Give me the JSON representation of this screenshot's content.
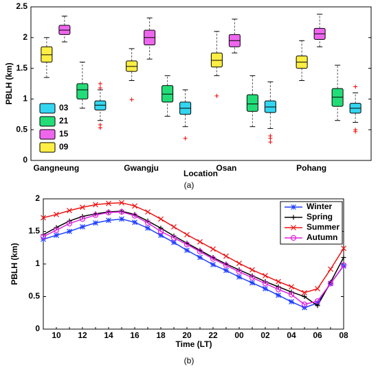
{
  "chart_data": [
    {
      "type": "box",
      "ylabel": "PBLH (km)",
      "xlabel": "Location",
      "caption": "(a)",
      "categories": [
        "Gangneung",
        "Gwangju",
        "Osan",
        "Pohang"
      ],
      "ylim": [
        0,
        2.5
      ],
      "yticks": [
        0,
        0.5,
        1,
        1.5,
        2,
        2.5
      ],
      "legend": "lower left",
      "series": [
        {
          "name": "03",
          "color": "#33d6f0",
          "boxes": [
            {
              "low": 0.65,
              "q1": 0.82,
              "median": 0.9,
              "q3": 0.97,
              "high": 1.15,
              "outliers": [
                1.25,
                1.18,
                0.58,
                0.53
              ]
            },
            {
              "low": 0.55,
              "q1": 0.75,
              "median": 0.85,
              "q3": 0.95,
              "high": 1.15,
              "outliers": [
                0.36
              ]
            },
            {
              "low": 0.52,
              "q1": 0.78,
              "median": 0.87,
              "q3": 0.97,
              "high": 1.28,
              "outliers": [
                0.4,
                0.36,
                0.3
              ]
            },
            {
              "low": 0.62,
              "q1": 0.77,
              "median": 0.85,
              "q3": 0.93,
              "high": 1.1,
              "outliers": [
                1.2,
                0.5,
                0.47
              ]
            }
          ]
        },
        {
          "name": "21",
          "color": "#22dd77",
          "boxes": [
            {
              "low": 0.85,
              "q1": 1.0,
              "median": 1.15,
              "q3": 1.25,
              "high": 1.6,
              "outliers": []
            },
            {
              "low": 0.72,
              "q1": 0.95,
              "median": 1.08,
              "q3": 1.22,
              "high": 1.38,
              "outliers": []
            },
            {
              "low": 0.55,
              "q1": 0.8,
              "median": 0.92,
              "q3": 1.07,
              "high": 1.38,
              "outliers": []
            },
            {
              "low": 0.65,
              "q1": 0.88,
              "median": 1.03,
              "q3": 1.17,
              "high": 1.55,
              "outliers": []
            }
          ]
        },
        {
          "name": "15",
          "color": "#ee66ee",
          "boxes": [
            {
              "low": 1.93,
              "q1": 2.05,
              "median": 2.12,
              "q3": 2.2,
              "high": 2.35,
              "outliers": []
            },
            {
              "low": 1.65,
              "q1": 1.88,
              "median": 2.0,
              "q3": 2.12,
              "high": 2.32,
              "outliers": []
            },
            {
              "low": 1.75,
              "q1": 1.85,
              "median": 1.95,
              "q3": 2.05,
              "high": 2.3,
              "outliers": []
            },
            {
              "low": 1.85,
              "q1": 1.97,
              "median": 2.06,
              "q3": 2.15,
              "high": 2.38,
              "outliers": []
            }
          ]
        },
        {
          "name": "09",
          "color": "#ffee44",
          "boxes": [
            {
              "low": 1.35,
              "q1": 1.6,
              "median": 1.72,
              "q3": 1.85,
              "high": 2.0,
              "outliers": []
            },
            {
              "low": 1.3,
              "q1": 1.45,
              "median": 1.53,
              "q3": 1.62,
              "high": 1.82,
              "outliers": [
                0.99
              ]
            },
            {
              "low": 1.38,
              "q1": 1.52,
              "median": 1.63,
              "q3": 1.75,
              "high": 2.1,
              "outliers": [
                1.05
              ]
            },
            {
              "low": 1.3,
              "q1": 1.5,
              "median": 1.6,
              "q3": 1.7,
              "high": 1.95,
              "outliers": []
            }
          ]
        }
      ]
    },
    {
      "type": "line",
      "ylabel": "PBLH (km)",
      "xlabel": "Time (LT)",
      "caption": "(b)",
      "categories": [
        null,
        "10",
        null,
        "12",
        null,
        "14",
        null,
        "16",
        null,
        "18",
        null,
        "20",
        null,
        "22",
        null,
        "00",
        null,
        "02",
        null,
        "04",
        null,
        "06",
        null,
        "08"
      ],
      "ylim": [
        0,
        2
      ],
      "yticks": [
        0,
        0.5,
        1,
        1.5,
        2
      ],
      "legend": "upper right",
      "series": [
        {
          "name": "Winter",
          "color": "#1f3fff",
          "marker": "asterisk",
          "values": [
            1.38,
            1.44,
            1.5,
            1.57,
            1.63,
            1.67,
            1.69,
            1.64,
            1.55,
            1.44,
            1.33,
            1.21,
            1.1,
            0.99,
            0.9,
            0.8,
            0.71,
            0.62,
            0.52,
            0.42,
            0.33,
            0.4,
            0.7,
            0.97
          ]
        },
        {
          "name": "Spring",
          "color": "#000000",
          "marker": "plus",
          "values": [
            1.45,
            1.56,
            1.66,
            1.73,
            1.77,
            1.8,
            1.81,
            1.76,
            1.66,
            1.55,
            1.43,
            1.32,
            1.21,
            1.1,
            1.0,
            0.91,
            0.82,
            0.73,
            0.65,
            0.57,
            0.5,
            0.36,
            0.72,
            1.1
          ]
        },
        {
          "name": "Summer",
          "color": "#ee1111",
          "marker": "x",
          "values": [
            1.71,
            1.76,
            1.82,
            1.87,
            1.91,
            1.93,
            1.94,
            1.89,
            1.8,
            1.69,
            1.57,
            1.45,
            1.34,
            1.23,
            1.12,
            1.01,
            0.91,
            0.82,
            0.73,
            0.65,
            0.56,
            0.62,
            0.92,
            1.24
          ]
        },
        {
          "name": "Autumn",
          "color": "#dd22dd",
          "marker": "circle",
          "values": [
            1.42,
            1.52,
            1.62,
            1.69,
            1.75,
            1.79,
            1.8,
            1.74,
            1.63,
            1.5,
            1.4,
            1.3,
            1.19,
            1.08,
            0.98,
            0.88,
            0.79,
            0.7,
            0.61,
            0.53,
            0.38,
            0.43,
            0.7,
            0.98
          ]
        }
      ]
    }
  ]
}
